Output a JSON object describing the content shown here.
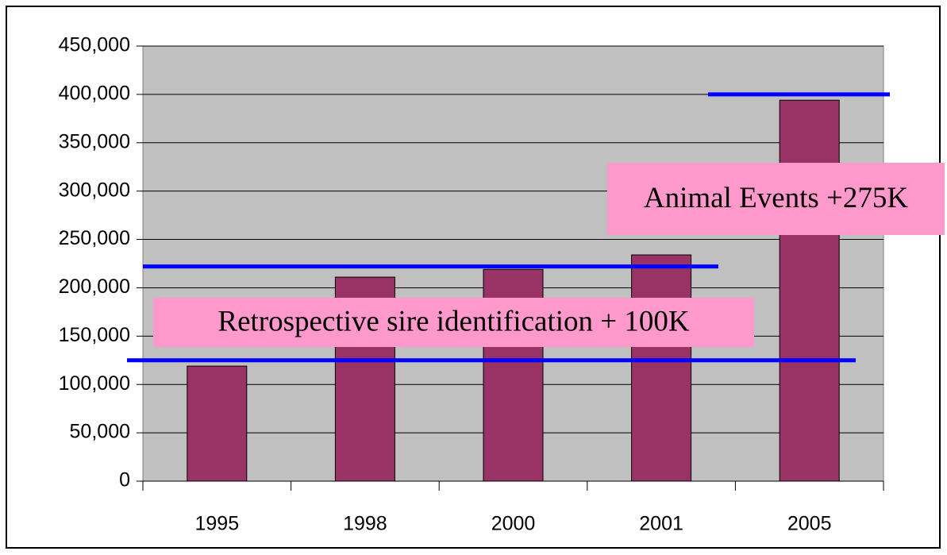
{
  "chart_data": {
    "type": "bar",
    "categories": [
      "1995",
      "1998",
      "2000",
      "2001",
      "2005"
    ],
    "values": [
      119000,
      211000,
      219000,
      234000,
      394000
    ],
    "color": "#993366",
    "ylim": [
      0,
      450000
    ],
    "yticks": [
      0,
      {
        "value": 50000,
        "label": "50,000"
      },
      {
        "value": 100000,
        "label": "100,000"
      },
      {
        "value": 150000,
        "label": "150,000"
      },
      {
        "value": 200000,
        "label": "200,000"
      },
      {
        "value": 250000,
        "label": "250,000"
      },
      {
        "value": 300000,
        "label": "300,000"
      },
      {
        "value": 350000,
        "label": "350,000"
      },
      {
        "value": 400000,
        "label": "400,000"
      },
      {
        "value": 450000,
        "label": "450,000"
      }
    ],
    "grid": true,
    "reference_lines": [
      {
        "value": 125000,
        "color": "#0000ff"
      },
      {
        "value": 222000,
        "color": "#0000ff"
      },
      {
        "value": 400000,
        "color": "#0000ff"
      }
    ],
    "annotations": [
      "Animal Events +275K",
      "Retrospective sire identification + 100K"
    ]
  }
}
